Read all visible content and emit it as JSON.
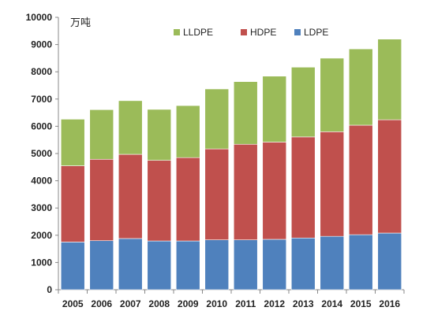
{
  "chart_data": {
    "type": "bar",
    "stacked": true,
    "unit_label": "万吨",
    "categories": [
      "2005",
      "2006",
      "2007",
      "2008",
      "2009",
      "2010",
      "2011",
      "2012",
      "2013",
      "2014",
      "2015",
      "2016"
    ],
    "series": [
      {
        "name": "LDPE",
        "color": "#4f81bd",
        "values": [
          1750,
          1800,
          1880,
          1790,
          1790,
          1830,
          1830,
          1850,
          1900,
          1960,
          2020,
          2080
        ]
      },
      {
        "name": "HDPE",
        "color": "#c0504d",
        "values": [
          2800,
          2990,
          3090,
          2960,
          3060,
          3340,
          3510,
          3570,
          3710,
          3840,
          4020,
          4160
        ]
      },
      {
        "name": "LLDPE",
        "color": "#9bbb59",
        "values": [
          1710,
          1820,
          1970,
          1870,
          1910,
          2200,
          2300,
          2420,
          2560,
          2700,
          2800,
          2960
        ]
      }
    ],
    "legend_order": [
      "LLDPE",
      "HDPE",
      "LDPE"
    ],
    "legend_position": "top",
    "ylim": [
      0,
      10000
    ],
    "yticks": [
      0,
      1000,
      2000,
      3000,
      4000,
      5000,
      6000,
      7000,
      8000,
      9000,
      10000
    ],
    "grid": false,
    "title": "",
    "xlabel": "",
    "ylabel": ""
  }
}
